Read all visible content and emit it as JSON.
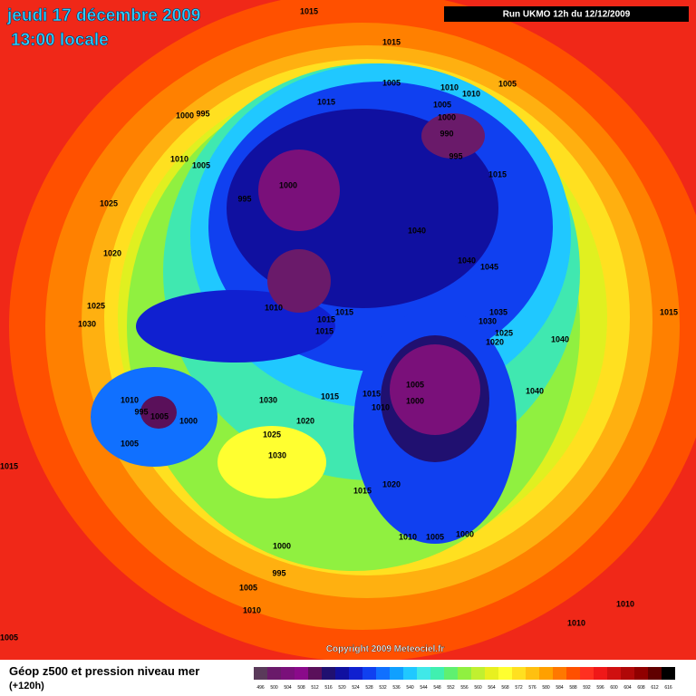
{
  "header": {
    "date": "jeudi 17 décembre 2009",
    "time": "13:00 locale",
    "run": "Run UKMO 12h du 12/12/2009"
  },
  "copyright": "Copyright 2009 Meteociel.fr",
  "legend": {
    "title": "Géop z500 et pression niveau mer",
    "subtitle": "(+120h)",
    "labels": [
      "496",
      "500",
      "504",
      "508",
      "512",
      "516",
      "520",
      "524",
      "528",
      "532",
      "536",
      "540",
      "544",
      "548",
      "552",
      "556",
      "560",
      "564",
      "568",
      "572",
      "576",
      "580",
      "584",
      "588",
      "592",
      "596",
      "600",
      "604",
      "608",
      "612",
      "616"
    ],
    "colors": [
      "#5a3a5a",
      "#6a1a6a",
      "#7a107a",
      "#8a0a8a",
      "#5a105a",
      "#201070",
      "#1010a0",
      "#1020d0",
      "#1040f0",
      "#1070ff",
      "#10a0ff",
      "#20c8ff",
      "#40e8e8",
      "#40f0b0",
      "#60f070",
      "#90f040",
      "#c0f030",
      "#e8f020",
      "#ffff30",
      "#ffe020",
      "#ffc010",
      "#ffa000",
      "#ff7800",
      "#ff5000",
      "#ff3020",
      "#f01818",
      "#d01010",
      "#b00808",
      "#900000",
      "#600000",
      "#000000"
    ]
  },
  "isobar_labels": [
    "1015",
    "1015",
    "1005",
    "1010",
    "1010",
    "1005",
    "1015",
    "1005",
    "1000",
    "995",
    "1000",
    "990",
    "995",
    "1015",
    "1010",
    "1005",
    "1000",
    "995",
    "1025",
    "1040",
    "1020",
    "1040",
    "1045",
    "1025",
    "1010",
    "1015",
    "1015",
    "1015",
    "1035",
    "1030",
    "1025",
    "1020",
    "1040",
    "1015",
    "1030",
    "1005",
    "1000",
    "1015",
    "1040",
    "1010",
    "995",
    "1005",
    "1000",
    "1030",
    "1015",
    "1010",
    "1020",
    "1025",
    "1030",
    "1005",
    "1015",
    "1015",
    "1020",
    "1010",
    "1005",
    "1000",
    "1000",
    "995",
    "1005",
    "1010",
    "1010",
    "1010",
    "1005"
  ]
}
